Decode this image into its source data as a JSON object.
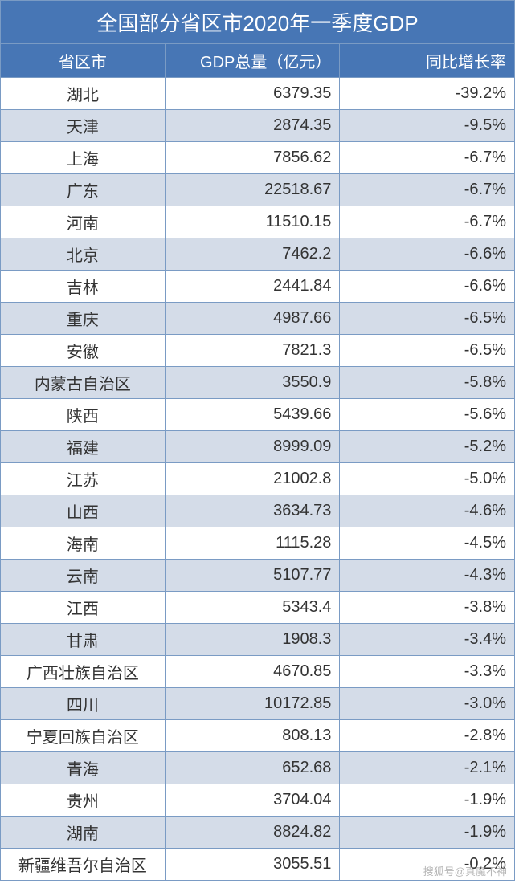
{
  "table": {
    "type": "table",
    "title": "全国部分省区市2020年一季度GDP",
    "title_bg_color": "#4776b5",
    "title_text_color": "#ffffff",
    "title_fontsize": 26,
    "header_bg_color": "#4776b5",
    "header_text_color": "#ffffff",
    "header_fontsize": 20,
    "row_odd_bg": "#ffffff",
    "row_even_bg": "#d4dce8",
    "border_color": "#7a9bc4",
    "cell_text_color": "#333333",
    "cell_fontsize": 20,
    "columns": [
      {
        "label": "省区市",
        "align": "center",
        "width": "32%"
      },
      {
        "label": "GDP总量（亿元）",
        "align": "right",
        "width": "34%"
      },
      {
        "label": "同比增长率",
        "align": "right",
        "width": "34%"
      }
    ],
    "rows": [
      {
        "province": "湖北",
        "gdp": "6379.35",
        "growth": "-39.2%"
      },
      {
        "province": "天津",
        "gdp": "2874.35",
        "growth": "-9.5%"
      },
      {
        "province": "上海",
        "gdp": "7856.62",
        "growth": "-6.7%"
      },
      {
        "province": "广东",
        "gdp": "22518.67",
        "growth": "-6.7%"
      },
      {
        "province": "河南",
        "gdp": "11510.15",
        "growth": "-6.7%"
      },
      {
        "province": "北京",
        "gdp": "7462.2",
        "growth": "-6.6%"
      },
      {
        "province": "吉林",
        "gdp": "2441.84",
        "growth": "-6.6%"
      },
      {
        "province": "重庆",
        "gdp": "4987.66",
        "growth": "-6.5%"
      },
      {
        "province": "安徽",
        "gdp": "7821.3",
        "growth": "-6.5%"
      },
      {
        "province": "内蒙古自治区",
        "gdp": "3550.9",
        "growth": "-5.8%"
      },
      {
        "province": "陕西",
        "gdp": "5439.66",
        "growth": "-5.6%"
      },
      {
        "province": "福建",
        "gdp": "8999.09",
        "growth": "-5.2%"
      },
      {
        "province": "江苏",
        "gdp": "21002.8",
        "growth": "-5.0%"
      },
      {
        "province": "山西",
        "gdp": "3634.73",
        "growth": "-4.6%"
      },
      {
        "province": "海南",
        "gdp": "1115.28",
        "growth": "-4.5%"
      },
      {
        "province": "云南",
        "gdp": "5107.77",
        "growth": "-4.3%"
      },
      {
        "province": "江西",
        "gdp": "5343.4",
        "growth": "-3.8%"
      },
      {
        "province": "甘肃",
        "gdp": "1908.3",
        "growth": "-3.4%"
      },
      {
        "province": "广西壮族自治区",
        "gdp": "4670.85",
        "growth": "-3.3%"
      },
      {
        "province": "四川",
        "gdp": "10172.85",
        "growth": "-3.0%"
      },
      {
        "province": "宁夏回族自治区",
        "gdp": "808.13",
        "growth": "-2.8%"
      },
      {
        "province": "青海",
        "gdp": "652.68",
        "growth": "-2.1%"
      },
      {
        "province": "贵州",
        "gdp": "3704.04",
        "growth": "-1.9%"
      },
      {
        "province": "湖南",
        "gdp": "8824.82",
        "growth": "-1.9%"
      },
      {
        "province": "新疆维吾尔自治区",
        "gdp": "3055.51",
        "growth": "-0.2%"
      }
    ]
  },
  "watermark": "搜狐号@真魔不神"
}
